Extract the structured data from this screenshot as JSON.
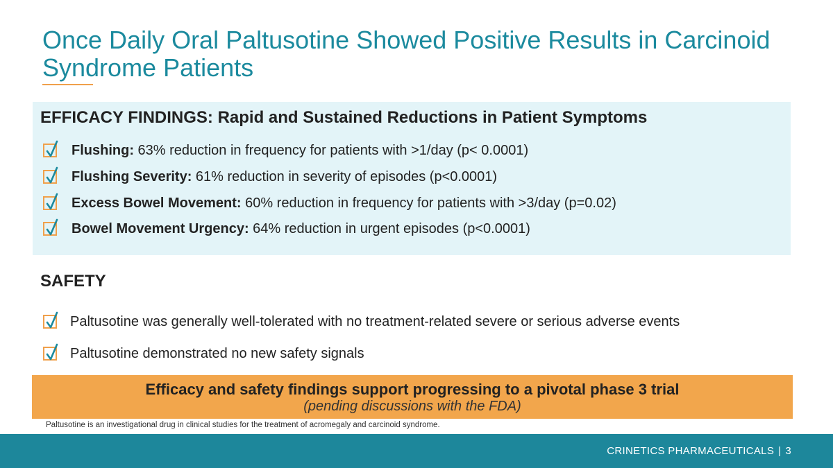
{
  "title": "Once Daily Oral Paltusotine Showed Positive Results in Carcinoid Syndrome Patients",
  "efficacy": {
    "heading": "EFFICACY FINDINGS: Rapid and Sustained Reductions in Patient Symptoms",
    "items": [
      {
        "label": "Flushing:",
        "text": " 63% reduction in frequency for patients with >1/day (p< 0.0001)"
      },
      {
        "label": "Flushing Severity:",
        "text": " 61% reduction in severity of episodes (p<0.0001)"
      },
      {
        "label": "Excess Bowel Movement:",
        "text": " 60% reduction in frequency for patients with >3/day (p=0.02)"
      },
      {
        "label": "Bowel Movement Urgency:",
        "text": " 64% reduction in urgent episodes (p<0.0001)"
      }
    ]
  },
  "safety": {
    "heading": "SAFETY",
    "items": [
      {
        "text": "Paltusotine was generally well-tolerated with no treatment-related severe or serious adverse events"
      },
      {
        "text": "Paltusotine demonstrated no new safety signals"
      }
    ]
  },
  "banner": {
    "main": "Efficacy and safety findings support progressing to a pivotal phase 3 trial",
    "sub": "(pending discussions with the FDA)"
  },
  "disclaimer": "Paltusotine is an investigational drug in clinical studies for the treatment of acromegaly and carcinoid syndrome.",
  "footer": {
    "company": "CRINETICS PHARMACEUTICALS",
    "separator": "|",
    "page": "3"
  },
  "icons": {
    "check": "checkbox-check-icon"
  },
  "colors": {
    "title": "#1b8a9e",
    "accent": "#f0a04b",
    "check": "#1b8a9e",
    "efficacy_bg": "#e3f4f8",
    "banner_bg": "#f2a64c",
    "footer_bg": "#1d879b"
  }
}
